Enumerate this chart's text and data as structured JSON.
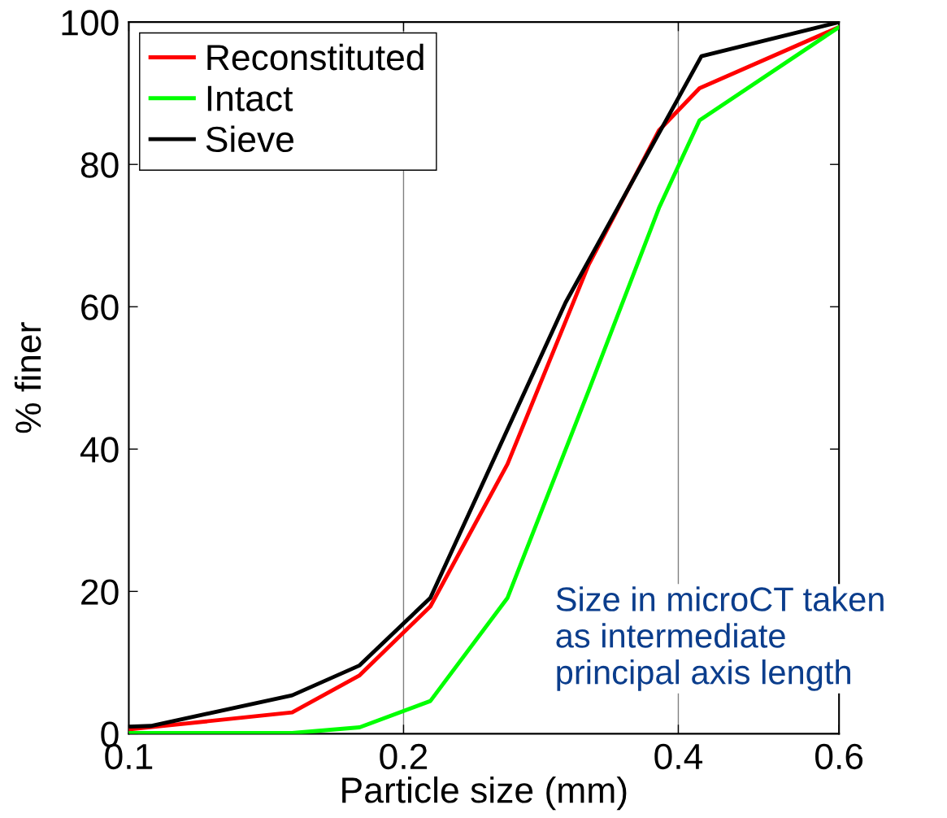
{
  "chart_data": {
    "type": "line",
    "xlabel": "Particle size (mm)",
    "ylabel": "% finer",
    "log": "x",
    "xlim": [
      0.1,
      0.6
    ],
    "xticks": [
      0.1,
      0.2,
      0.4,
      0.6
    ],
    "ylim": [
      0,
      100
    ],
    "yticks": [
      0,
      20,
      40,
      60,
      80,
      100
    ],
    "grid": "x",
    "legend": "top left",
    "annotations": [
      "Size in microCT taken\nas intermediate\nprincipal axis length"
    ],
    "series": [
      {
        "name": "Reconstituted",
        "color": "#ff0000",
        "x": [
          0.1,
          0.151,
          0.179,
          0.214,
          0.26,
          0.319,
          0.381,
          0.422,
          0.6
        ],
        "values": [
          0.6,
          3.0,
          8.2,
          17.9,
          37.9,
          65.9,
          84.8,
          90.7,
          99.3
        ]
      },
      {
        "name": "Intact",
        "color": "#00ff00",
        "x": [
          0.1,
          0.151,
          0.179,
          0.214,
          0.26,
          0.319,
          0.381,
          0.422,
          0.6
        ],
        "values": [
          0.1,
          0.1,
          0.9,
          4.6,
          19.1,
          48.2,
          73.9,
          86.2,
          99.3
        ]
      },
      {
        "name": "Sieve",
        "color": "#000000",
        "x": [
          0.1,
          0.1057,
          0.151,
          0.179,
          0.214,
          0.301,
          0.424,
          0.6
        ],
        "values": [
          1.0,
          1.1,
          5.4,
          9.6,
          19.1,
          60.6,
          95.2,
          100
        ]
      }
    ]
  }
}
